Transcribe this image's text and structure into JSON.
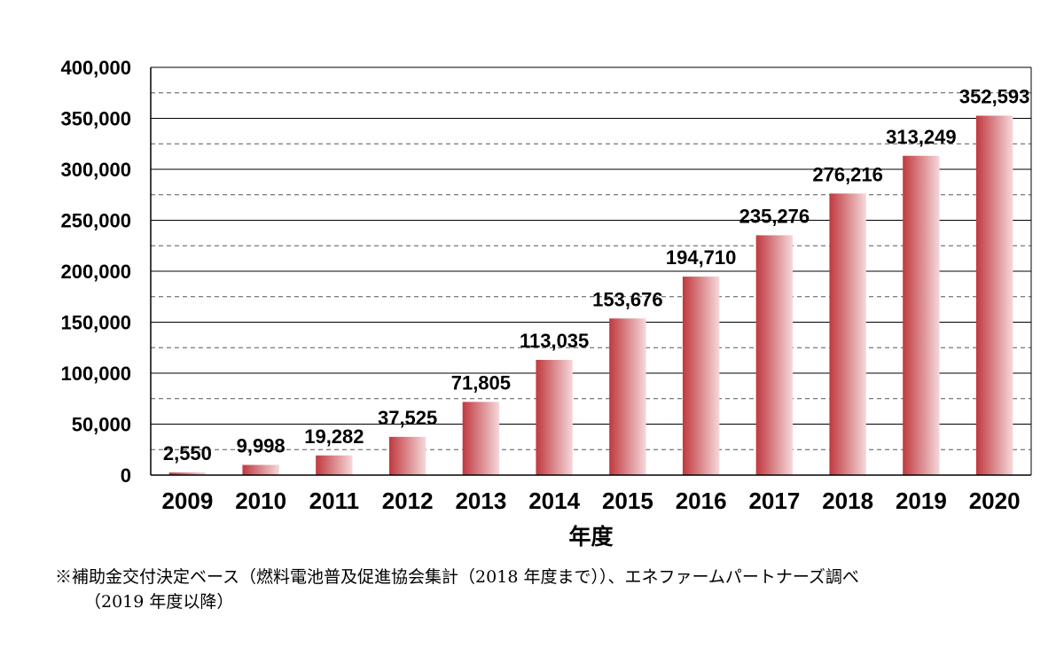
{
  "chart_data": {
    "type": "bar",
    "categories": [
      "2009",
      "2010",
      "2011",
      "2012",
      "2013",
      "2014",
      "2015",
      "2016",
      "2017",
      "2018",
      "2019",
      "2020"
    ],
    "values": [
      2550,
      9998,
      19282,
      37525,
      71805,
      113035,
      153676,
      194710,
      235276,
      276216,
      313249,
      352593
    ],
    "data_labels": [
      "2,550",
      "9,998",
      "19,282",
      "37,525",
      "71,805",
      "113,035",
      "153,676",
      "194,710",
      "235,276",
      "276,216",
      "313,249",
      "352,593"
    ],
    "xlabel": "年度",
    "ylim": [
      0,
      400000
    ],
    "yticks": [
      0,
      50000,
      100000,
      150000,
      200000,
      250000,
      300000,
      350000,
      400000
    ],
    "ytick_labels": [
      "0",
      "50,000",
      "100,000",
      "150,000",
      "200,000",
      "250,000",
      "300,000",
      "350,000",
      "400,000"
    ],
    "grid": "major solid, minor dashed",
    "bar_color_dark": "#c0393f",
    "bar_color_light": "#f6d8da"
  },
  "note": {
    "line1": "※補助金交付決定ベース（燃料電池普及促進協会集計（2018 年度まで））、エネファームパートナーズ調べ",
    "line2": "（2019 年度以降）"
  }
}
